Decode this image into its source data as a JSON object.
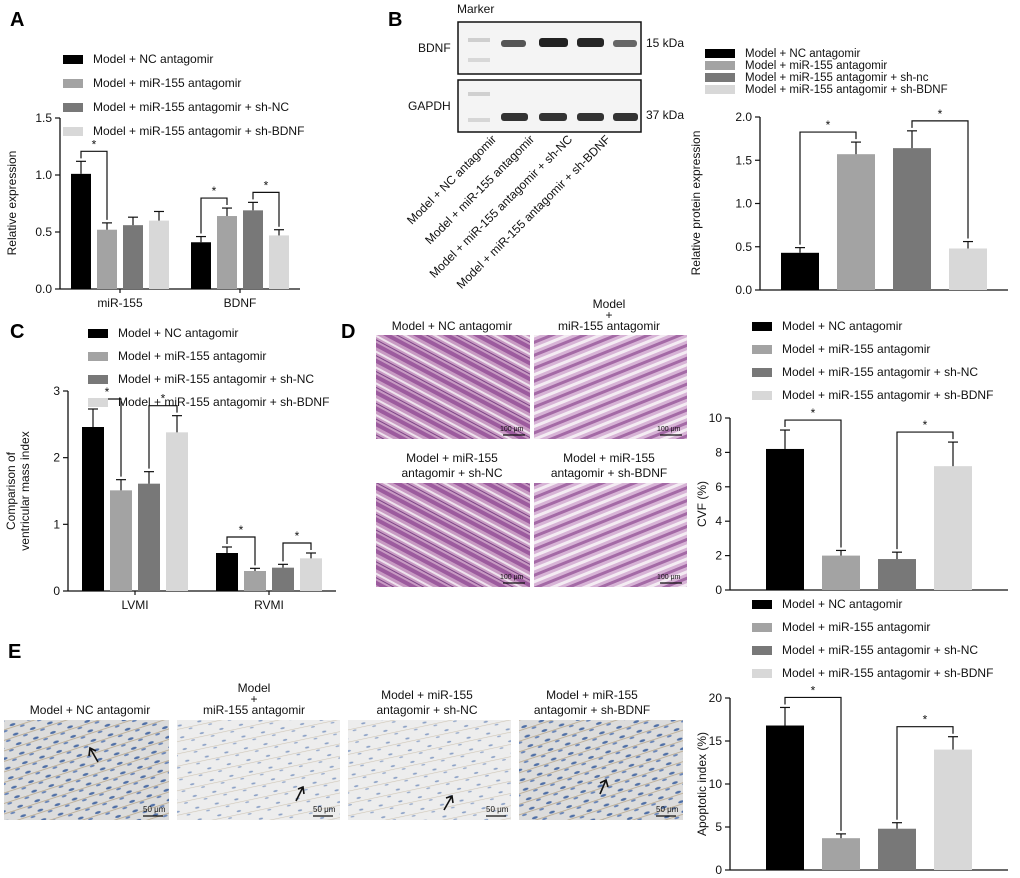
{
  "panel_letters": [
    "A",
    "B",
    "C",
    "D",
    "E"
  ],
  "legend_A": [
    "Model + NC antagomir",
    "Model + miR-155 antagomir",
    "Model + miR-155 antagomir + sh-NC",
    "Model + miR-155 antagomir + sh-BDNF"
  ],
  "legend_B": [
    "Model + NC antagomir",
    "Model + miR-155 antagomir",
    "Model + miR-155 antagomir + sh-nc",
    "Model + miR-155 antagomir + sh-BDNF"
  ],
  "colors": [
    "#000000",
    "#a3a3a3",
    "#787878",
    "#d8d8d8"
  ],
  "blot": {
    "marker_label": "Marker",
    "row_labels": [
      "BDNF",
      "GAPDH"
    ],
    "kda_labels": [
      "15 kDa",
      "37 kDa"
    ],
    "lane_labels": [
      "Model + NC antagomir",
      "Model + miR-155 antagomir",
      "Model + miR-155 antagomir + sh-NC",
      "Model + miR-155 antagomir + sh-BDNF"
    ]
  },
  "histology_D": {
    "captions": [
      "Model + NC antagomir",
      "Model\n+\nmiR-155 antagomir",
      "Model + miR-155\nantagomir + sh-NC",
      "Model + miR-155\nantagomir + sh-BDNF"
    ],
    "scale_bar": "100 μm"
  },
  "histology_E": {
    "captions": [
      "Model + NC antagomir",
      "Model\n+\nmiR-155 antagomir",
      "Model + miR-155\nantagomir + sh-NC",
      "Model + miR-155\nantagomir + sh-BDNF"
    ],
    "scale_bar": "50 μm"
  },
  "significance_mark": "*",
  "chart_data": [
    {
      "panel": "A",
      "type": "bar",
      "categories": [
        "miR-155",
        "BDNF"
      ],
      "series": [
        {
          "name": "Model + NC antagomir",
          "values": [
            1.01,
            0.41
          ],
          "errors": [
            0.11,
            0.05
          ]
        },
        {
          "name": "Model + miR-155 antagomir",
          "values": [
            0.52,
            0.64
          ],
          "errors": [
            0.06,
            0.07
          ]
        },
        {
          "name": "Model + miR-155 antagomir + sh-NC",
          "values": [
            0.56,
            0.69
          ],
          "errors": [
            0.07,
            0.07
          ]
        },
        {
          "name": "Model + miR-155 antagomir + sh-BDNF",
          "values": [
            0.6,
            0.47
          ],
          "errors": [
            0.08,
            0.05
          ]
        }
      ],
      "xlabel": "",
      "ylabel": "Relative expression",
      "ylim": [
        0,
        1.5
      ],
      "yticks": [
        "0.0",
        "0.5",
        "1.0",
        "1.5"
      ],
      "significance": [
        [
          0,
          0,
          1
        ],
        [
          1,
          0,
          1
        ],
        [
          1,
          2,
          3
        ]
      ]
    },
    {
      "panel": "B",
      "type": "bar",
      "categories": [
        ""
      ],
      "series": [
        {
          "name": "Model + NC antagomir",
          "values": [
            0.43
          ],
          "errors": [
            0.06
          ]
        },
        {
          "name": "Model + miR-155 antagomir",
          "values": [
            1.57
          ],
          "errors": [
            0.14
          ]
        },
        {
          "name": "Model + miR-155 antagomir + sh-nc",
          "values": [
            1.64
          ],
          "errors": [
            0.2
          ]
        },
        {
          "name": "Model + miR-155 antagomir + sh-BDNF",
          "values": [
            0.48
          ],
          "errors": [
            0.08
          ]
        }
      ],
      "xlabel": "",
      "ylabel": "Relative protein expression",
      "ylim": [
        0,
        2.0
      ],
      "yticks": [
        "0.0",
        "0.5",
        "1.0",
        "1.5",
        "2.0"
      ],
      "significance": [
        [
          0,
          0,
          1
        ],
        [
          0,
          2,
          3
        ]
      ]
    },
    {
      "panel": "C",
      "type": "bar",
      "categories": [
        "LVMI",
        "RVMI"
      ],
      "series": [
        {
          "name": "Model + NC antagomir",
          "values": [
            2.46,
            0.57
          ],
          "errors": [
            0.27,
            0.09
          ]
        },
        {
          "name": "Model + miR-155 antagomir",
          "values": [
            1.51,
            0.3
          ],
          "errors": [
            0.16,
            0.04
          ]
        },
        {
          "name": "Model + miR-155 antagomir + sh-NC",
          "values": [
            1.61,
            0.35
          ],
          "errors": [
            0.18,
            0.05
          ]
        },
        {
          "name": "Model + miR-155 antagomir + sh-BDNF",
          "values": [
            2.38,
            0.49
          ],
          "errors": [
            0.25,
            0.08
          ]
        }
      ],
      "xlabel": "",
      "ylabel": "Comparison of\nventricular mass index",
      "ylim": [
        0,
        3
      ],
      "yticks": [
        "0",
        "1",
        "2",
        "3"
      ],
      "significance": [
        [
          0,
          0,
          1
        ],
        [
          0,
          2,
          3
        ],
        [
          1,
          0,
          1
        ],
        [
          1,
          2,
          3
        ]
      ]
    },
    {
      "panel": "D",
      "type": "bar",
      "categories": [
        ""
      ],
      "series": [
        {
          "name": "Model + NC antagomir",
          "values": [
            8.2
          ],
          "errors": [
            1.1
          ]
        },
        {
          "name": "Model + miR-155 antagomir",
          "values": [
            2.0
          ],
          "errors": [
            0.3
          ]
        },
        {
          "name": "Model + miR-155 antagomir + sh-NC",
          "values": [
            1.8
          ],
          "errors": [
            0.4
          ]
        },
        {
          "name": "Model + miR-155 antagomir + sh-BDNF",
          "values": [
            7.2
          ],
          "errors": [
            1.4
          ]
        }
      ],
      "xlabel": "",
      "ylabel": "CVF (%)",
      "ylim": [
        0,
        10
      ],
      "yticks": [
        "0",
        "2",
        "4",
        "6",
        "8",
        "10"
      ],
      "significance": [
        [
          0,
          0,
          1
        ],
        [
          0,
          2,
          3
        ]
      ]
    },
    {
      "panel": "E",
      "type": "bar",
      "categories": [
        ""
      ],
      "series": [
        {
          "name": "Model + NC antagomir",
          "values": [
            16.8
          ],
          "errors": [
            2.1
          ]
        },
        {
          "name": "Model + miR-155 antagomir",
          "values": [
            3.7
          ],
          "errors": [
            0.5
          ]
        },
        {
          "name": "Model + miR-155 antagomir + sh-NC",
          "values": [
            4.8
          ],
          "errors": [
            0.7
          ]
        },
        {
          "name": "Model + miR-155 antagomir + sh-BDNF",
          "values": [
            14.0
          ],
          "errors": [
            1.5
          ]
        }
      ],
      "xlabel": "",
      "ylabel": "Apoptotic index (%)",
      "ylim": [
        0,
        20
      ],
      "yticks": [
        "0",
        "5",
        "10",
        "15",
        "20"
      ],
      "significance": [
        [
          0,
          0,
          1
        ],
        [
          0,
          2,
          3
        ]
      ]
    }
  ]
}
